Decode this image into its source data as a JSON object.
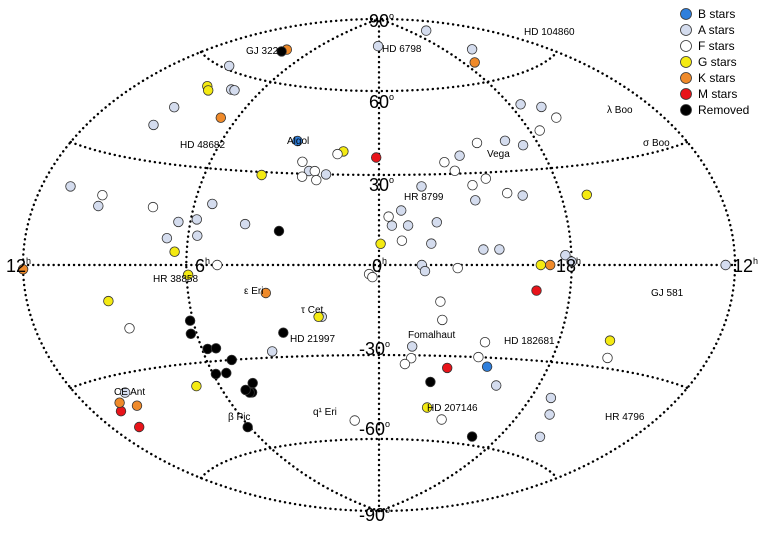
{
  "legend": [
    {
      "id": "B",
      "label": "B stars",
      "color": "#2f7fdc"
    },
    {
      "id": "A",
      "label": "A stars",
      "color": "#d4dcee"
    },
    {
      "id": "F",
      "label": "F stars",
      "color": "#ffffff"
    },
    {
      "id": "G",
      "label": "G stars",
      "color": "#f4ea12"
    },
    {
      "id": "K",
      "label": "K stars",
      "color": "#ef8a2a"
    },
    {
      "id": "M",
      "label": "M stars",
      "color": "#e8141a"
    },
    {
      "id": "R",
      "label": "Removed",
      "color": "#000000"
    }
  ],
  "axis_labels": {
    "dec_p90": "90",
    "dec_p60": "60",
    "dec_p30": "30",
    "dec_0": "0",
    "dec_m30": "-30",
    "dec_m60": "-60",
    "dec_m90": "-90",
    "ra_left": "12",
    "ra_6": "6",
    "ra_0": "0",
    "ra_18": "18",
    "ra_right": "12",
    "deg_sup": "o",
    "hour_sup": "h"
  },
  "star_labels": [
    {
      "id": "gj322",
      "text": "GJ 322"
    },
    {
      "id": "hd6798",
      "text": "HD 6798"
    },
    {
      "id": "hd104860",
      "text": "HD 104860"
    },
    {
      "id": "lamboo",
      "text": "λ Boo"
    },
    {
      "id": "hd48682",
      "text": "HD 48682"
    },
    {
      "id": "algol",
      "text": "Algol"
    },
    {
      "id": "vega",
      "text": "Vega"
    },
    {
      "id": "sigboo",
      "text": "σ Boo"
    },
    {
      "id": "hr8799",
      "text": "HR 8799"
    },
    {
      "id": "hr38858",
      "text": "HR 38858"
    },
    {
      "id": "epseri",
      "text": "ε Eri"
    },
    {
      "id": "gj581",
      "text": "GJ 581"
    },
    {
      "id": "taucet",
      "text": "τ Cet"
    },
    {
      "id": "hd21997",
      "text": "HD 21997"
    },
    {
      "id": "fomalhaut",
      "text": "Fomalhaut"
    },
    {
      "id": "hd182681",
      "text": "HD 182681"
    },
    {
      "id": "ceant",
      "text": "CE Ant"
    },
    {
      "id": "hd207146",
      "text": "HD 207146"
    },
    {
      "id": "betapic",
      "text": "β Pic"
    },
    {
      "id": "q1eri",
      "text": "q¹ Eri"
    },
    {
      "id": "hr4796",
      "text": "HR 4796"
    }
  ],
  "stars": [
    {
      "t": "K",
      "ra": 7.9,
      "dec": 71
    },
    {
      "t": "R",
      "ra": 8.0,
      "dec": 70
    },
    {
      "t": "A",
      "ra": 0.1,
      "dec": 78
    },
    {
      "t": "A",
      "ra": 15.8,
      "dec": 81
    },
    {
      "t": "A",
      "ra": 16.0,
      "dec": 71
    },
    {
      "t": "K",
      "ra": 17.3,
      "dec": 67
    },
    {
      "t": "A",
      "ra": 9.3,
      "dec": 61
    },
    {
      "t": "G",
      "ra": 8.8,
      "dec": 54
    },
    {
      "t": "G",
      "ra": 8.5,
      "dec": 53
    },
    {
      "t": "A",
      "ra": 7.5,
      "dec": 55
    },
    {
      "t": "A",
      "ra": 7.3,
      "dec": 55
    },
    {
      "t": "A",
      "ra": 17.5,
      "dec": 51
    },
    {
      "t": "A",
      "ra": 16.7,
      "dec": 49
    },
    {
      "t": "F",
      "ra": 16.5,
      "dec": 45
    },
    {
      "t": "F",
      "ra": 17.6,
      "dec": 42
    },
    {
      "t": "K",
      "ra": 6.7,
      "dec": 46
    },
    {
      "t": "A",
      "ra": 9.1,
      "dec": 46
    },
    {
      "t": "A",
      "ra": 9.2,
      "dec": 40
    },
    {
      "t": "A",
      "ra": 19.2,
      "dec": 40
    },
    {
      "t": "F",
      "ra": 20.3,
      "dec": 40
    },
    {
      "t": "B",
      "ra": 3.1,
      "dec": 41
    },
    {
      "t": "G",
      "ra": 1.3,
      "dec": 38
    },
    {
      "t": "F",
      "ra": 1.5,
      "dec": 37
    },
    {
      "t": "M",
      "ra": 0.1,
      "dec": 36
    },
    {
      "t": "A",
      "ra": 18.6,
      "dec": 38
    },
    {
      "t": "A",
      "ra": 21.1,
      "dec": 36
    },
    {
      "t": "F",
      "ra": 21.7,
      "dec": 34
    },
    {
      "t": "F",
      "ra": 21.4,
      "dec": 31
    },
    {
      "t": "F",
      "ra": 2.7,
      "dec": 34
    },
    {
      "t": "A",
      "ra": 2.4,
      "dec": 31
    },
    {
      "t": "F",
      "ra": 2.2,
      "dec": 31
    },
    {
      "t": "F",
      "ra": 2.1,
      "dec": 28
    },
    {
      "t": "A",
      "ra": 1.8,
      "dec": 30
    },
    {
      "t": "F",
      "ra": 2.6,
      "dec": 29
    },
    {
      "t": "G",
      "ra": 4.0,
      "dec": 29
    },
    {
      "t": "F",
      "ra": 20.4,
      "dec": 28
    },
    {
      "t": "F",
      "ra": 20.9,
      "dec": 26
    },
    {
      "t": "F",
      "ra": 19.8,
      "dec": 23
    },
    {
      "t": "A",
      "ra": 19.3,
      "dec": 22
    },
    {
      "t": "A",
      "ra": 22.6,
      "dec": 26
    },
    {
      "t": "A",
      "ra": 20.9,
      "dec": 21
    },
    {
      "t": "G",
      "ra": 17.1,
      "dec": 21
    },
    {
      "t": "A",
      "ra": 22.4,
      "dec": 7
    },
    {
      "t": "A",
      "ra": 10.8,
      "dec": 20
    },
    {
      "t": "A",
      "ra": 5.4,
      "dec": 19
    },
    {
      "t": "F",
      "ra": 7.4,
      "dec": 17
    },
    {
      "t": "F",
      "ra": 9.4,
      "dec": 19
    },
    {
      "t": "A",
      "ra": 9.4,
      "dec": 16
    },
    {
      "t": "A",
      "ra": 23.3,
      "dec": 18
    },
    {
      "t": "A",
      "ra": 23.1,
      "dec": 13
    },
    {
      "t": "A",
      "ra": 23.6,
      "dec": 13
    },
    {
      "t": "F",
      "ra": 23.7,
      "dec": 16
    },
    {
      "t": "A",
      "ra": 22.2,
      "dec": 14
    },
    {
      "t": "A",
      "ra": 5.8,
      "dec": 14
    },
    {
      "t": "A",
      "ra": 6.4,
      "dec": 13
    },
    {
      "t": "A",
      "ra": 4.2,
      "dec": 13
    },
    {
      "t": "R",
      "ra": 3.1,
      "dec": 11
    },
    {
      "t": "A",
      "ra": 6.7,
      "dec": 8
    },
    {
      "t": "A",
      "ra": 5.7,
      "dec": 9
    },
    {
      "t": "G",
      "ra": 6.4,
      "dec": 4
    },
    {
      "t": "G",
      "ra": 23.95,
      "dec": 7
    },
    {
      "t": "F",
      "ra": 23.3,
      "dec": 8
    },
    {
      "t": "A",
      "ra": 20.8,
      "dec": 5
    },
    {
      "t": "A",
      "ra": 20.3,
      "dec": 5
    },
    {
      "t": "A",
      "ra": 18.2,
      "dec": 3
    },
    {
      "t": "A",
      "ra": 18.0,
      "dec": 1
    },
    {
      "t": "A",
      "ra": 22.7,
      "dec": 0
    },
    {
      "t": "A",
      "ra": 22.6,
      "dec": -2
    },
    {
      "t": "G",
      "ra": 19.0,
      "dec": 0
    },
    {
      "t": "K",
      "ra": 18.7,
      "dec": 0
    },
    {
      "t": "K",
      "ra": 12.0,
      "dec": -1
    },
    {
      "t": "F",
      "ra": 5.0,
      "dec": 0
    },
    {
      "t": "F",
      "ra": 0.3,
      "dec": -3
    },
    {
      "t": "F",
      "ra": 0.2,
      "dec": -4
    },
    {
      "t": "F",
      "ra": 21.6,
      "dec": -1
    },
    {
      "t": "G",
      "ra": 5.95,
      "dec": -3
    },
    {
      "t": "A",
      "ra": 12.4,
      "dec": 0
    },
    {
      "t": "K",
      "ra": 3.5,
      "dec": -9
    },
    {
      "t": "M",
      "ra": 19.1,
      "dec": -8
    },
    {
      "t": "G",
      "ra": 8.8,
      "dec": -10
    },
    {
      "t": "F",
      "ra": 8.3,
      "dec": -18
    },
    {
      "t": "F",
      "ra": 22.1,
      "dec": -12
    },
    {
      "t": "F",
      "ra": 22.0,
      "dec": -18
    },
    {
      "t": "A",
      "ra": 1.8,
      "dec": -17
    },
    {
      "t": "G",
      "ra": 1.9,
      "dec": -17
    },
    {
      "t": "R",
      "ra": 3.1,
      "dec": -22
    },
    {
      "t": "R",
      "ra": 6.1,
      "dec": -17
    },
    {
      "t": "R",
      "ra": 6.2,
      "dec": -21
    },
    {
      "t": "R",
      "ra": 5.8,
      "dec": -26
    },
    {
      "t": "R",
      "ra": 5.5,
      "dec": -26
    },
    {
      "t": "R",
      "ra": 5.1,
      "dec": -30
    },
    {
      "t": "R",
      "ra": 5.9,
      "dec": -34
    },
    {
      "t": "R",
      "ra": 5.5,
      "dec": -34
    },
    {
      "t": "R",
      "ra": 4.7,
      "dec": -38
    },
    {
      "t": "R",
      "ra": 4.9,
      "dec": -41
    },
    {
      "t": "R",
      "ra": 5.0,
      "dec": -41
    },
    {
      "t": "R",
      "ra": 5.1,
      "dec": -40
    },
    {
      "t": "A",
      "ra": 3.6,
      "dec": -28
    },
    {
      "t": "G",
      "ra": 16.2,
      "dec": -22
    },
    {
      "t": "F",
      "ra": 16.0,
      "dec": -27
    },
    {
      "t": "F",
      "ra": 20.5,
      "dec": -25
    },
    {
      "t": "G",
      "ra": 6.9,
      "dec": -37
    },
    {
      "t": "M",
      "ra": 10.8,
      "dec": -39
    },
    {
      "t": "M",
      "ra": 10.8,
      "dec": -44
    },
    {
      "t": "K",
      "ra": 10.5,
      "dec": -37
    },
    {
      "t": "K",
      "ra": 9.9,
      "dec": -39
    },
    {
      "t": "A",
      "ra": 9.9,
      "dec": -35
    },
    {
      "t": "A",
      "ra": 22.9,
      "dec": -27
    },
    {
      "t": "F",
      "ra": 22.9,
      "dec": -31
    },
    {
      "t": "F",
      "ra": 23.1,
      "dec": -33
    },
    {
      "t": "M",
      "ra": 21.6,
      "dec": -34
    },
    {
      "t": "R",
      "ra": 22.1,
      "dec": -39
    },
    {
      "t": "G",
      "ra": 22.0,
      "dec": -48
    },
    {
      "t": "B",
      "ra": 20.2,
      "dec": -33
    },
    {
      "t": "F",
      "ra": 20.6,
      "dec": -30
    },
    {
      "t": "A",
      "ra": 19.6,
      "dec": -39
    },
    {
      "t": "F",
      "ra": 21.2,
      "dec": -52
    },
    {
      "t": "R",
      "ra": 19.3,
      "dec": -57
    },
    {
      "t": "A",
      "ra": 17.2,
      "dec": -41
    },
    {
      "t": "A",
      "ra": 16.7,
      "dec": -46
    },
    {
      "t": "A",
      "ra": 16.1,
      "dec": -53
    },
    {
      "t": "R",
      "ra": 6.1,
      "dec": -52
    },
    {
      "t": "F",
      "ra": 1.1,
      "dec": -53
    }
  ]
}
